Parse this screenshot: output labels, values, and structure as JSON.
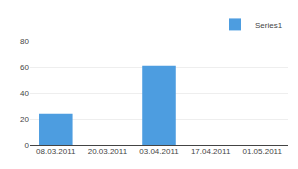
{
  "chart_data": {
    "type": "bar",
    "categories": [
      "08.03.2011",
      "20.03.2011",
      "03.04.2011",
      "17.04.2011",
      "01.05.2011"
    ],
    "series": [
      {
        "name": "Series1",
        "color": "#4d9de0",
        "values": [
          24,
          0,
          61,
          0,
          0
        ]
      }
    ],
    "ylim": [
      0,
      80
    ],
    "yticks": [
      0,
      20,
      40,
      60,
      80
    ],
    "grid": true,
    "legend": "upper right"
  }
}
